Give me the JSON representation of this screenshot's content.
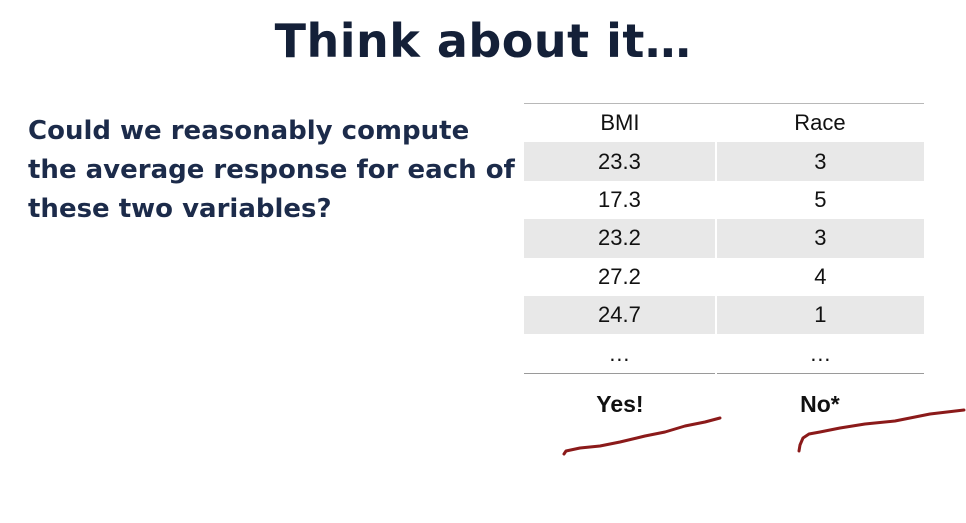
{
  "slide": {
    "title": "Think about it…",
    "question": "Could we reasonably compute the average response for each of these two variables?"
  },
  "table": {
    "headers": [
      "BMI",
      "Race"
    ],
    "rows": [
      [
        "23.3",
        "3"
      ],
      [
        "17.3",
        "5"
      ],
      [
        "23.2",
        "3"
      ],
      [
        "27.2",
        "4"
      ],
      [
        "24.7",
        "1"
      ],
      [
        "…",
        "…"
      ]
    ],
    "answers": [
      "Yes!",
      "No*"
    ]
  },
  "colors": {
    "title": "#142038",
    "annotation": "#8b1a1a",
    "row_shade": "#e8e8e8"
  }
}
